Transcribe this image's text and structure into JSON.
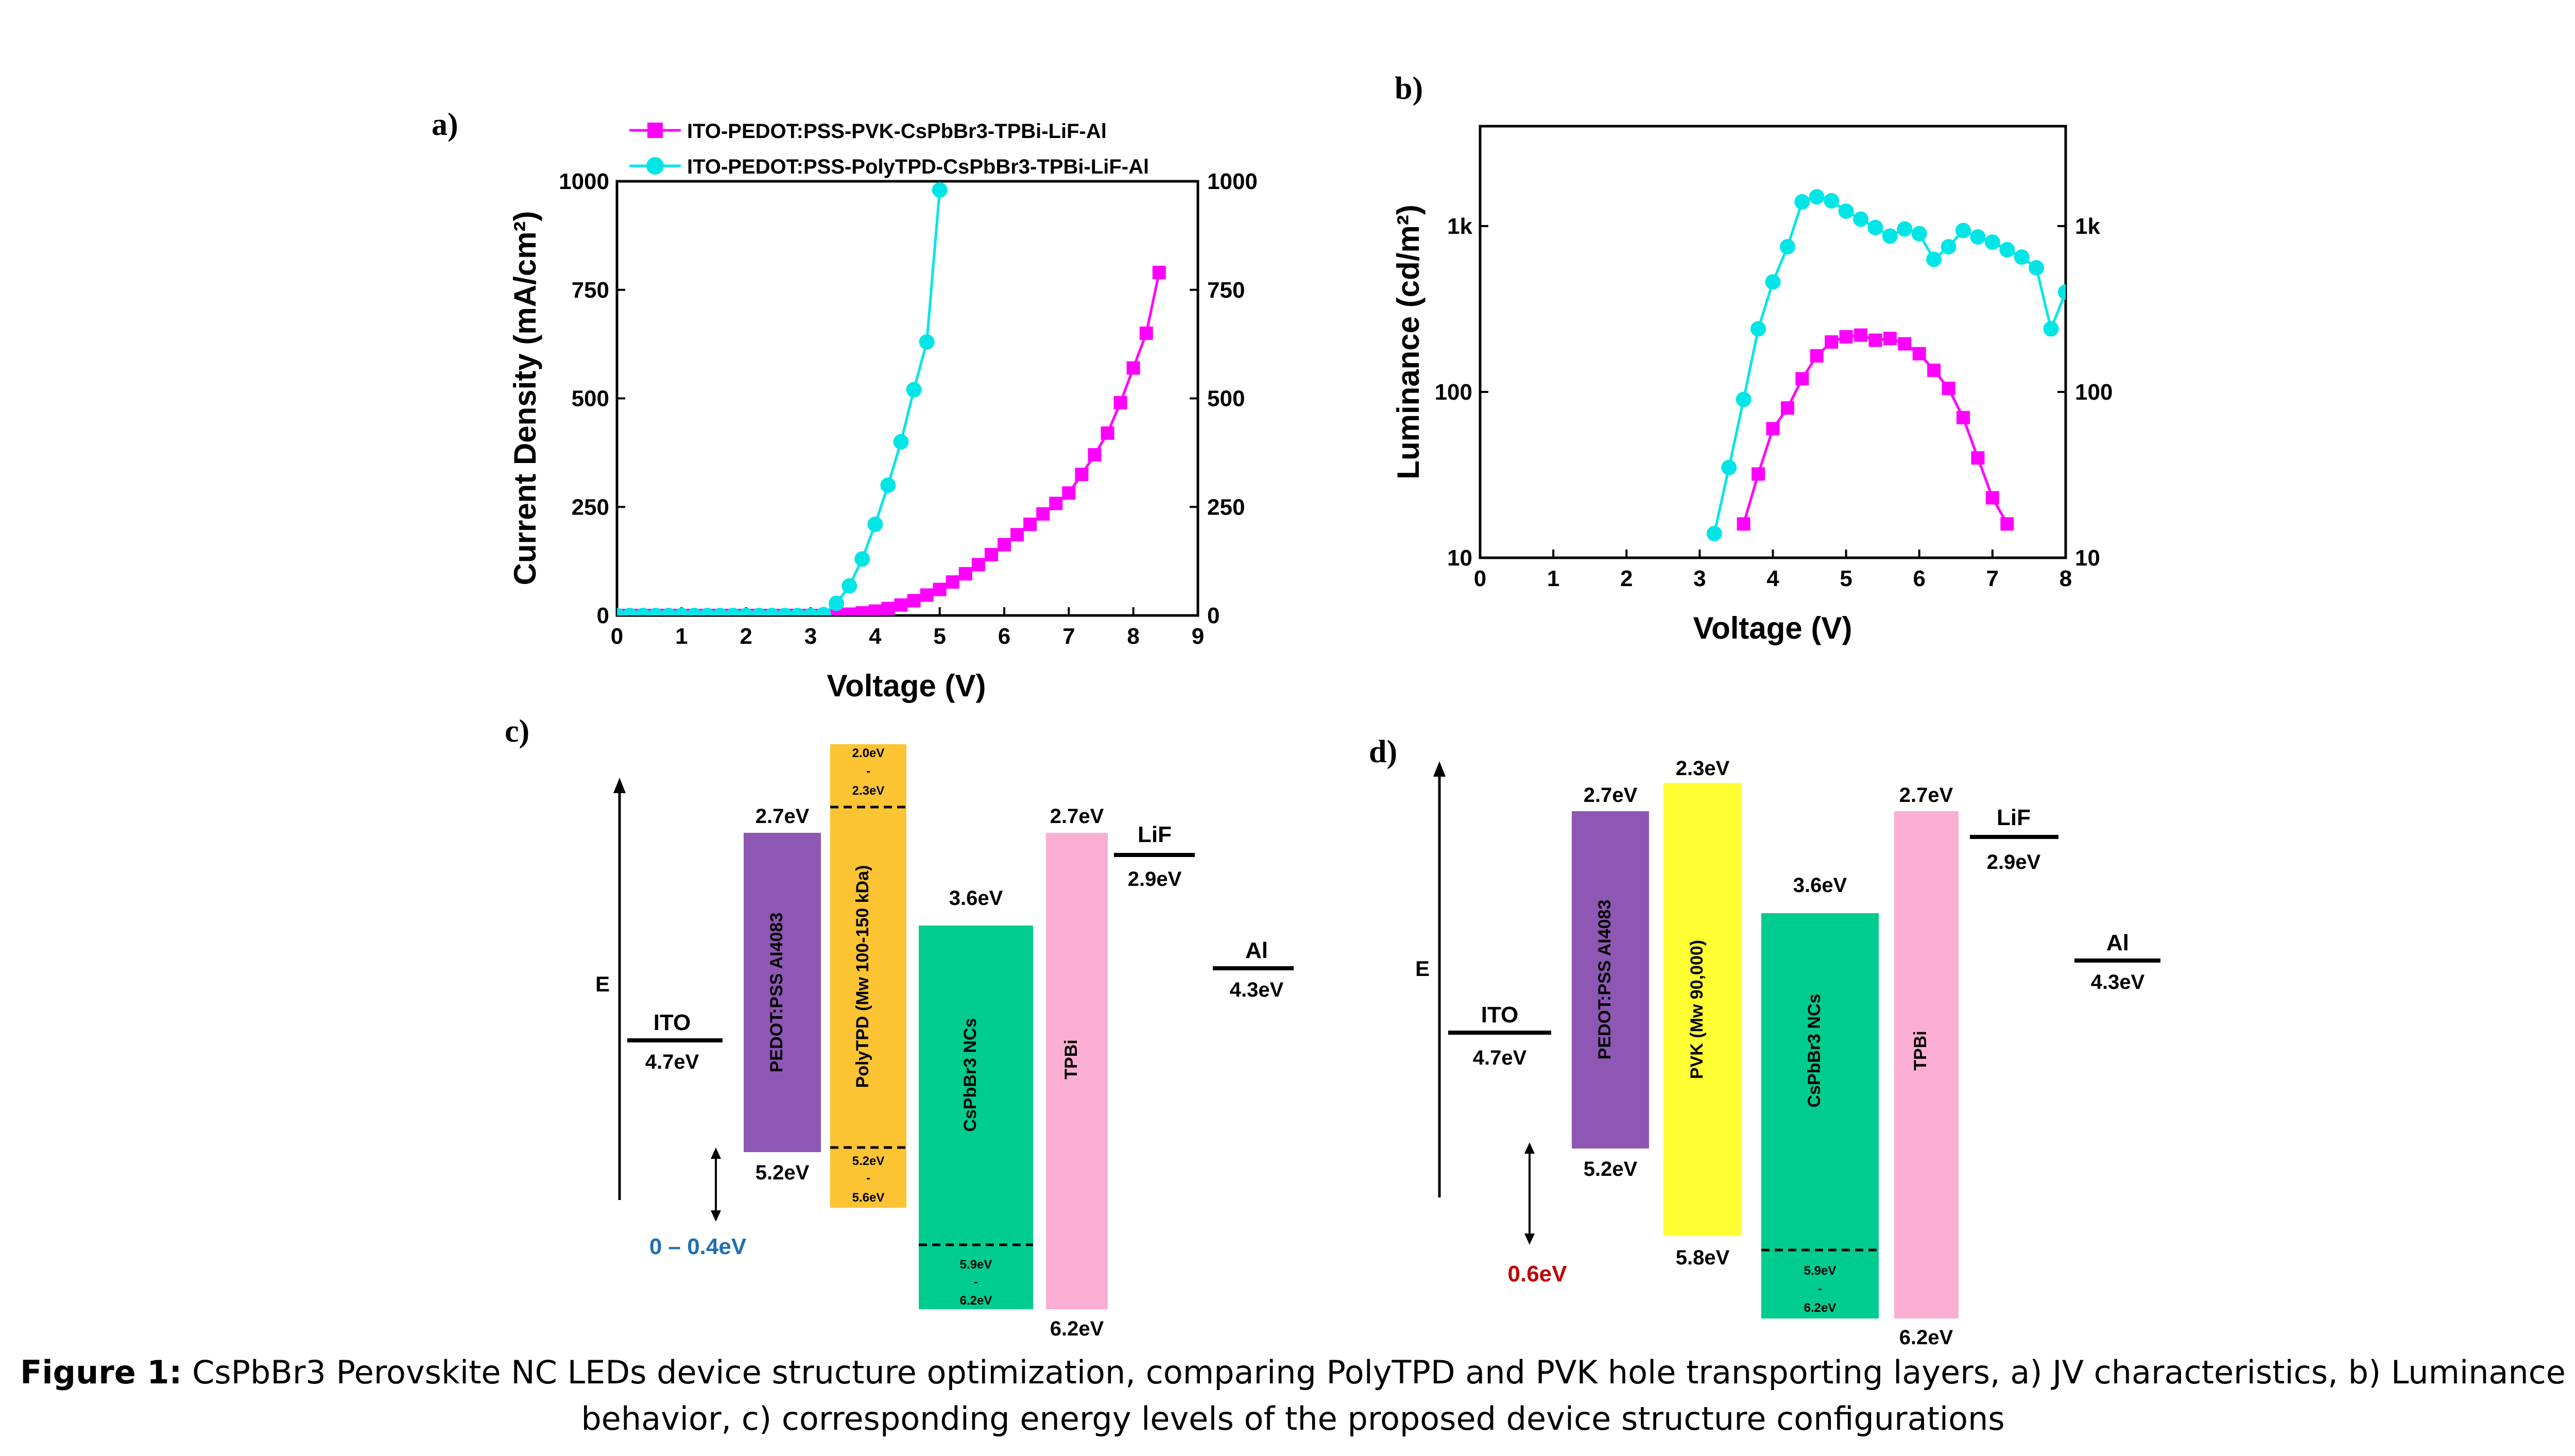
{
  "panel_labels": {
    "a": "a)",
    "b": "b)",
    "c": "c)",
    "d": "d)"
  },
  "chart_data": [
    {
      "type": "line",
      "panel": "a",
      "xlabel": "Voltage (V)",
      "ylabel": "Current Density (mA/cm²)",
      "xlim": [
        0,
        9
      ],
      "ylim": [
        0,
        1000
      ],
      "xticks": [
        0,
        1,
        2,
        3,
        4,
        5,
        6,
        7,
        8,
        9
      ],
      "yticks": [
        0,
        250,
        500,
        750,
        1000
      ],
      "right_axis_ticks": [
        0,
        250,
        500,
        750,
        1000
      ],
      "legend_position": "top",
      "series": [
        {
          "name": "ITO-PEDOT:PSS-PVK-CsPbBr3-TPBi-LiF-Al",
          "color": "#ff00ff",
          "marker": "square",
          "x": [
            0,
            0.2,
            0.4,
            0.6,
            0.8,
            1.0,
            1.2,
            1.4,
            1.6,
            1.8,
            2.0,
            2.2,
            2.4,
            2.6,
            2.8,
            3.0,
            3.2,
            3.4,
            3.6,
            3.8,
            4.0,
            4.2,
            4.4,
            4.6,
            4.8,
            5.0,
            5.2,
            5.4,
            5.6,
            5.8,
            6.0,
            6.2,
            6.4,
            6.6,
            6.8,
            7.0,
            7.2,
            7.4,
            7.6,
            7.8,
            8.0,
            8.2,
            8.4
          ],
          "y": [
            0,
            0,
            0,
            0,
            0,
            0,
            0,
            0,
            0,
            0,
            0,
            0,
            0,
            0,
            0,
            0,
            0,
            1,
            3,
            6,
            10,
            16,
            24,
            34,
            47,
            60,
            77,
            96,
            117,
            140,
            163,
            186,
            210,
            234,
            258,
            282,
            325,
            370,
            420,
            490,
            570,
            650,
            790
          ]
        },
        {
          "name": "ITO-PEDOT:PSS-PolyTPD-CsPbBr3-TPBi-LiF-Al",
          "color": "#00e5e5",
          "marker": "circle",
          "x": [
            0,
            0.2,
            0.4,
            0.6,
            0.8,
            1.0,
            1.2,
            1.4,
            1.6,
            1.8,
            2.0,
            2.2,
            2.4,
            2.6,
            2.8,
            3.0,
            3.2,
            3.4,
            3.6,
            3.8,
            4.0,
            4.2,
            4.4,
            4.6,
            4.8,
            5.0
          ],
          "y": [
            0,
            0,
            0,
            0,
            0,
            0,
            0,
            0,
            0,
            0,
            0,
            0,
            0,
            0,
            0,
            0,
            2,
            28,
            68,
            130,
            210,
            300,
            400,
            520,
            630,
            980
          ]
        }
      ]
    },
    {
      "type": "line",
      "panel": "b",
      "xlabel": "Voltage (V)",
      "ylabel": "Luminance (cd/m²)",
      "yscale": "log",
      "xlim": [
        0,
        8
      ],
      "ylim": [
        10,
        4000
      ],
      "xticks": [
        0,
        1,
        2,
        3,
        4,
        5,
        6,
        7,
        8
      ],
      "ytick_labels": [
        "10",
        "100",
        "1k"
      ],
      "right_axis_ticks": [
        "10",
        "100",
        "1k"
      ],
      "series": [
        {
          "color": "#ff00ff",
          "marker": "square",
          "x": [
            3.6,
            3.8,
            4.0,
            4.2,
            4.4,
            4.6,
            4.8,
            5.0,
            5.2,
            5.4,
            5.6,
            5.8,
            6.0,
            6.2,
            6.4,
            6.6,
            6.8,
            7.0,
            7.2
          ],
          "y": [
            16,
            32,
            60,
            80,
            120,
            165,
            200,
            215,
            220,
            205,
            210,
            195,
            170,
            135,
            105,
            70,
            40,
            23,
            16
          ]
        },
        {
          "color": "#00e5e5",
          "marker": "circle",
          "x": [
            3.2,
            3.4,
            3.6,
            3.8,
            4.0,
            4.2,
            4.4,
            4.6,
            4.8,
            5.0,
            5.2,
            5.4,
            5.6,
            5.8,
            6.0,
            6.2,
            6.4,
            6.6,
            6.8,
            7.0,
            7.2,
            7.4,
            7.6,
            7.8,
            8.0
          ],
          "y": [
            14,
            35,
            90,
            240,
            460,
            750,
            1400,
            1500,
            1420,
            1230,
            1100,
            980,
            870,
            960,
            900,
            630,
            750,
            940,
            860,
            800,
            720,
            650,
            560,
            240,
            400
          ]
        }
      ]
    }
  ],
  "diagram_c": {
    "axis_label": "E",
    "ito_label": "ITO",
    "ito_value": "4.7eV",
    "pedot_top": "2.7eV",
    "pedot_bottom": "5.2eV",
    "pedot_name": "PEDOT:PSS AI4083",
    "poly_top_1": "2.0eV",
    "poly_top_dash": "-",
    "poly_top_2": "2.3eV",
    "poly_bot_1": "5.2eV",
    "poly_bot_dash": "-",
    "poly_bot_2": "5.6eV",
    "poly_name": "PolyTPD (Mw 100-150 kDa)",
    "cs_top": "3.6eV",
    "cs_name": "CsPbBr3 NCs",
    "cs_bot_1": "5.9eV",
    "cs_bot_dash": "-",
    "cs_bot_2": "6.2eV",
    "tpbi_top": "2.7eV",
    "tpbi_bottom": "6.2eV",
    "tpbi_name": "TPBi",
    "lif_label": "LiF",
    "lif_value": "2.9eV",
    "al_label": "Al",
    "al_value": "4.3eV",
    "barrier": "0 – 0.4eV",
    "barrier_color": "#1f6fb4",
    "colors": {
      "pedot": "#8e57b4",
      "htl": "#fcc432",
      "cs": "#00cc8f",
      "tpbi": "#fbaed3"
    }
  },
  "diagram_d": {
    "axis_label": "E",
    "ito_label": "ITO",
    "ito_value": "4.7eV",
    "pedot_top": "2.7eV",
    "pedot_bottom": "5.2eV",
    "pedot_name": "PEDOT:PSS AI4083",
    "pvk_top": "2.3eV",
    "pvk_bottom": "5.8eV",
    "pvk_name": "PVK (Mw 90,000)",
    "cs_top": "3.6eV",
    "cs_name": "CsPbBr3 NCs",
    "cs_bot_1": "5.9eV",
    "cs_bot_dash": "-",
    "cs_bot_2": "6.2eV",
    "tpbi_top": "2.7eV",
    "tpbi_bottom": "6.2eV",
    "tpbi_name": "TPBi",
    "lif_label": "LiF",
    "lif_value": "2.9eV",
    "al_label": "Al",
    "al_value": "4.3eV",
    "barrier": "0.6eV",
    "barrier_color": "#c00000",
    "colors": {
      "pedot": "#8e57b4",
      "htl": "#ffff33",
      "cs": "#00cc8f",
      "tpbi": "#fbaed3"
    }
  },
  "caption": {
    "lead": "Figure 1:",
    "text": "CsPbBr3 Perovskite NC LEDs device structure optimization, comparing PolyTPD and PVK hole transporting layers, a) JV characteristics, b) Luminance behavior, c) corresponding energy levels of the proposed device structure configurations"
  }
}
